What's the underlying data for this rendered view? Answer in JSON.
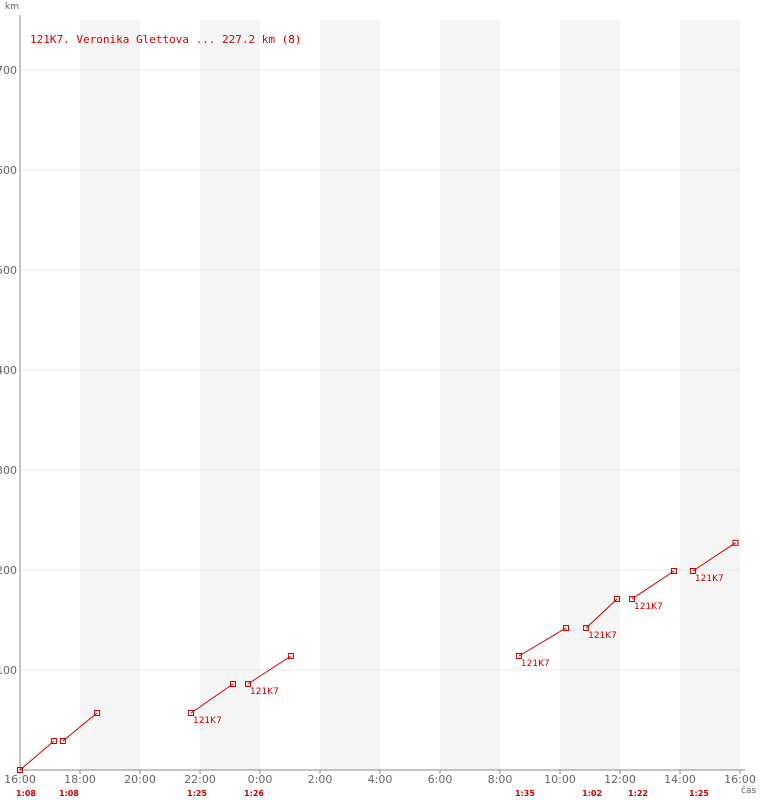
{
  "chart_data": {
    "type": "line",
    "title": "121K7. Veronika Glettova ... 227.2 km (8)",
    "y_label": "km",
    "x_label": "čas",
    "color": "#cc0000",
    "xlim": [
      0,
      24
    ],
    "xticks": [
      {
        "value": 0,
        "label": "16:00"
      },
      {
        "value": 2,
        "label": "18:00"
      },
      {
        "value": 4,
        "label": "20:00"
      },
      {
        "value": 6,
        "label": "22:00"
      },
      {
        "value": 8,
        "label": "0:00"
      },
      {
        "value": 10,
        "label": "2:00"
      },
      {
        "value": 12,
        "label": "4:00"
      },
      {
        "value": 14,
        "label": "6:00"
      },
      {
        "value": 16,
        "label": "8:00"
      },
      {
        "value": 18,
        "label": "10:00"
      },
      {
        "value": 20,
        "label": "12:00"
      },
      {
        "value": 22,
        "label": "14:00"
      },
      {
        "value": 24,
        "label": "16:00"
      }
    ],
    "ylim": [
      0,
      750
    ],
    "yticks": [
      100,
      200,
      300,
      400,
      500,
      600,
      700
    ],
    "grid": true,
    "segments": [
      {
        "name": null,
        "duration": "1:08",
        "x": [
          0,
          1.13
        ],
        "values": [
          0,
          29
        ]
      },
      {
        "name": null,
        "duration": "1:08",
        "x": [
          1.43,
          2.57
        ],
        "values": [
          29,
          57
        ]
      },
      {
        "name": "121K7",
        "duration": "1:25",
        "x": [
          5.7,
          7.1
        ],
        "values": [
          57,
          86
        ]
      },
      {
        "name": "121K7",
        "duration": "1:26",
        "x": [
          7.6,
          9.03
        ],
        "values": [
          86,
          114
        ]
      },
      {
        "name": "121K7",
        "duration": "1:35",
        "x": [
          16.63,
          18.2
        ],
        "values": [
          114,
          142
        ]
      },
      {
        "name": "121K7",
        "duration": "1:02",
        "x": [
          18.87,
          19.9
        ],
        "values": [
          142,
          171
        ]
      },
      {
        "name": "121K7",
        "duration": "1:22",
        "x": [
          20.4,
          21.8
        ],
        "values": [
          171,
          199
        ]
      },
      {
        "name": "121K7",
        "duration": "1:25",
        "x": [
          22.43,
          23.85
        ],
        "values": [
          199,
          227.2
        ]
      }
    ]
  }
}
